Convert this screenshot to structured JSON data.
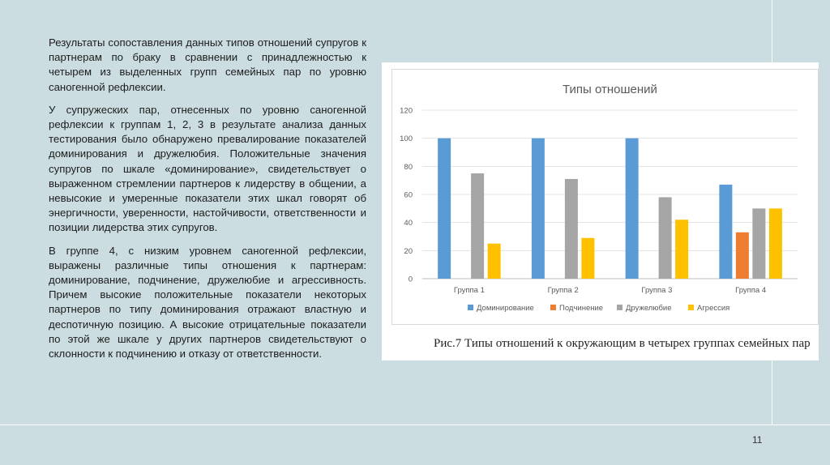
{
  "paragraphs": [
    "Результаты сопоставления данных типов отношений супругов к партнерам по браку в сравнении с принадлежностью к четырем из выделенных групп семейных пар по уровню саногенной рефлексии.",
    "У супружеских пар, отнесенных по уровню саногенной рефлексии к группам 1, 2, 3 в результате анализа данных тестирования было обнаружено превалирование показателей доминирования и дружелюбия. Положительные значения супругов по шкале «доминирование», свидетельствует о выраженном стремлении партнеров к лидерству в общении, а невысокие и умеренные показатели этих шкал говорят об энергичности, уверенности, настойчивости, ответственности и позиции лидерства этих супругов.",
    "В группе 4, с низким уровнем саногенной рефлексии, выражены различные типы отношения к партнерам: доминирование, подчинение, дружелюбие и агрессивность. Причем высокие положительные показатели некоторых партнеров по типу доминирования отражают властную и деспотичную позицию.  А высокие отрицательные показатели по этой же шкале у других партнеров свидетельствуют о склонности к подчинению и отказу от ответственности."
  ],
  "caption": "Рис.7 Типы отношений к окружающим в четырех группах семейных пар",
  "page_number": "11",
  "chart_data": {
    "type": "bar",
    "title": "Типы отношений",
    "xlabel": "",
    "ylabel": "",
    "categories": [
      "Группа 1",
      "Группа 2",
      "Группа 3",
      "Группа 4"
    ],
    "ylim": [
      0,
      120
    ],
    "yticks": [
      0,
      20,
      40,
      60,
      80,
      100,
      120
    ],
    "grid": true,
    "legend_position": "bottom",
    "series": [
      {
        "name": "Доминирование",
        "color": "#5b9bd5",
        "values": [
          100,
          100,
          100,
          67
        ]
      },
      {
        "name": "Подчинение",
        "color": "#ed7d31",
        "values": [
          0,
          0,
          0,
          33
        ]
      },
      {
        "name": "Дружелюбие",
        "color": "#a5a5a5",
        "values": [
          75,
          71,
          58,
          50
        ]
      },
      {
        "name": "Агрессия",
        "color": "#ffc000",
        "values": [
          25,
          29,
          42,
          50
        ]
      }
    ]
  }
}
